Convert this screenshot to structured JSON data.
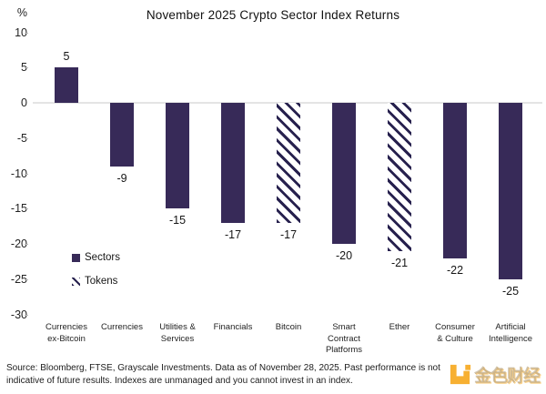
{
  "title": "November 2025 Crypto Sector Index Returns",
  "chart_data": {
    "type": "bar",
    "title": "November 2025 Crypto Sector Index Returns",
    "unit_label": "%",
    "categories": [
      "Currencies ex-Bitcoin",
      "Currencies",
      "Utilities & Services",
      "Financials",
      "Bitcoin",
      "Smart Contract Platforms",
      "Ether",
      "Consumer & Culture",
      "Artificial Intelligence"
    ],
    "label_lines": [
      [
        "Currencies",
        "ex-Bitcoin"
      ],
      [
        "Currencies"
      ],
      [
        "Utilities &",
        "Services"
      ],
      [
        "Financials"
      ],
      [
        "Bitcoin"
      ],
      [
        "Smart",
        "Contract",
        "Platforms"
      ],
      [
        "Ether"
      ],
      [
        "Consumer",
        "& Culture"
      ],
      [
        "Artificial",
        "Intelligence"
      ]
    ],
    "values": [
      5,
      -9,
      -15,
      -17,
      -17,
      -20,
      -21,
      -22,
      -25
    ],
    "bar_styles": [
      "solid",
      "solid",
      "solid",
      "solid",
      "hatched",
      "solid",
      "hatched",
      "solid",
      "solid"
    ],
    "data_labels": [
      "5",
      "-9",
      "-15",
      "-17",
      "-17",
      "-20",
      "-21",
      "-22",
      "-25"
    ],
    "y_ticks": [
      10,
      5,
      0,
      -5,
      -10,
      -15,
      -20,
      -25,
      -30
    ],
    "ylim": [
      -30,
      10
    ],
    "grid": "zero-line-only",
    "legend_position": "inside-left",
    "legend": [
      {
        "label": "Sectors",
        "style": "solid"
      },
      {
        "label": "Tokens",
        "style": "hatched"
      }
    ],
    "colors": {
      "bar": "#372a58",
      "hatch_stripe": "#27214e",
      "zero_line": "#e4e4e4"
    }
  },
  "footer": {
    "line1": "Source: Bloomberg, FTSE, Grayscale Investments. Data as of November 28, 2025. Past performance is not",
    "line2": "indicative of future results. Indexes are unmanaged and you cannot invest in an index."
  },
  "watermark": {
    "text": "金色财经",
    "color": "#f7a81c"
  }
}
